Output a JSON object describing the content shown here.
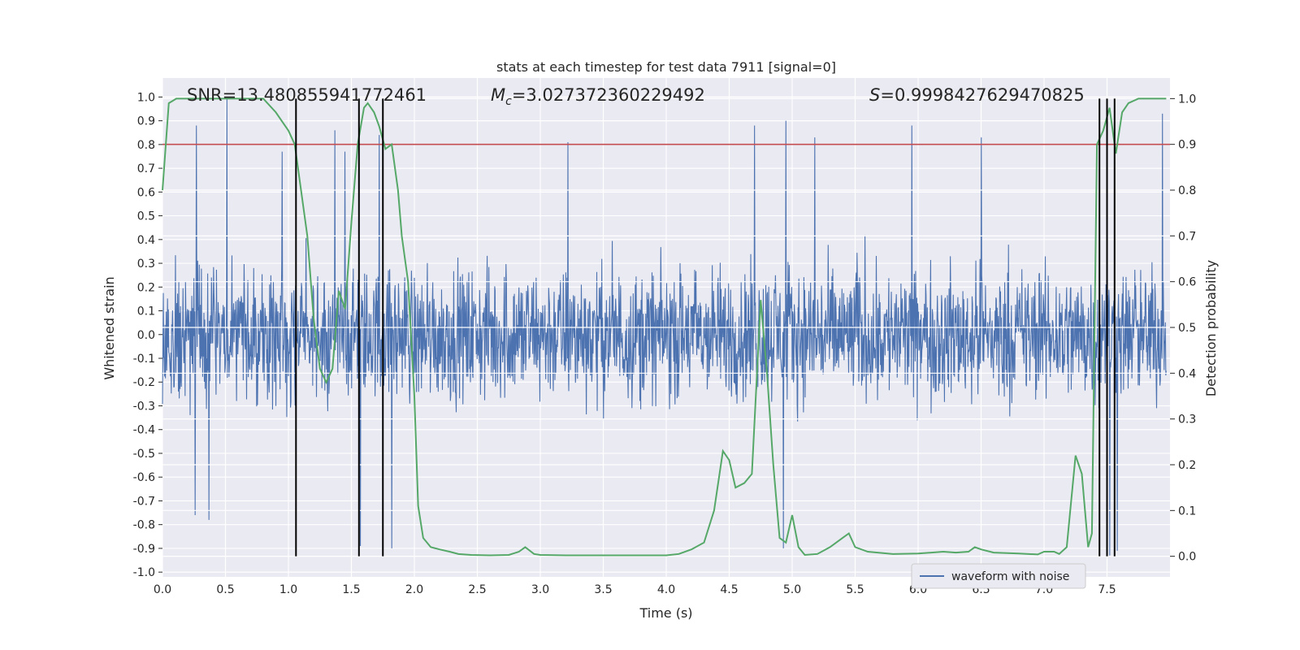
{
  "chart_data": {
    "type": "line",
    "title": "stats at each timestep for test data 7911 [signal=0]",
    "xlabel": "Time (s)",
    "ylabel": "Whitened strain",
    "y2label": "Detection probability",
    "xlim": [
      0.0,
      8.0
    ],
    "ylim": [
      -1.02,
      1.08
    ],
    "y2lim": [
      -0.045,
      1.045
    ],
    "xticks": [
      "0.0",
      "0.5",
      "1.0",
      "1.5",
      "2.0",
      "2.5",
      "3.0",
      "3.5",
      "4.0",
      "4.5",
      "5.0",
      "5.5",
      "6.0",
      "6.5",
      "7.0",
      "7.5"
    ],
    "yticks": [
      "1.0",
      "0.9",
      "0.8",
      "0.7",
      "0.6",
      "0.5",
      "0.4",
      "0.3",
      "0.2",
      "0.1",
      "0.0",
      "-0.1",
      "-0.2",
      "-0.3",
      "-0.4",
      "-0.5",
      "-0.6",
      "-0.7",
      "-0.8",
      "-0.9",
      "-1.0"
    ],
    "y2ticks": [
      "1.0",
      "0.9",
      "0.8",
      "0.7",
      "0.6",
      "0.5",
      "0.4",
      "0.3",
      "0.2",
      "0.1",
      "0.0"
    ],
    "grid": true,
    "legend": {
      "entries": [
        "waveform with noise"
      ],
      "placement": "lower-right"
    },
    "annotations": {
      "snr": "SNR=13.480855941772461",
      "mc_symbol": "M",
      "mc_sub": "c",
      "mc_value": "=3.027372360229492",
      "s_symbol": "S",
      "s_value": "=0.9998427629470825"
    },
    "threshold": 0.9,
    "threshold_color": "#c44e52",
    "detection_markers": [
      1.06,
      1.56,
      1.75,
      7.44,
      7.5,
      7.56
    ],
    "marker_color": "#000000",
    "series": [
      {
        "name": "waveform with noise",
        "color": "#4c72b0",
        "kind": "noise",
        "envelope_typical": 0.4,
        "peaks": [
          [
            0.27,
            0.88
          ],
          [
            0.51,
            0.99
          ],
          [
            0.26,
            -0.76
          ],
          [
            0.37,
            -0.78
          ],
          [
            0.95,
            0.77
          ],
          [
            1.37,
            0.86
          ],
          [
            1.45,
            0.77
          ],
          [
            1.57,
            -0.89
          ],
          [
            1.72,
            0.84
          ],
          [
            1.82,
            -0.9
          ],
          [
            3.22,
            0.81
          ],
          [
            4.7,
            0.88
          ],
          [
            4.95,
            0.9
          ],
          [
            5.18,
            0.83
          ],
          [
            5.95,
            0.88
          ],
          [
            6.5,
            0.83
          ],
          [
            7.58,
            -0.91
          ],
          [
            7.52,
            -0.93
          ],
          [
            7.94,
            0.93
          ],
          [
            4.93,
            -0.9
          ]
        ]
      },
      {
        "name": "detection probability",
        "color": "#55a868",
        "axis": "right",
        "x": [
          0.0,
          0.05,
          0.11,
          0.2,
          0.3,
          0.4,
          0.5,
          0.6,
          0.7,
          0.8,
          0.9,
          0.95,
          1.0,
          1.05,
          1.1,
          1.15,
          1.2,
          1.25,
          1.3,
          1.35,
          1.4,
          1.45,
          1.5,
          1.55,
          1.6,
          1.63,
          1.68,
          1.72,
          1.77,
          1.82,
          1.87,
          1.9,
          1.95,
          2.0,
          2.03,
          2.07,
          2.13,
          2.2,
          2.28,
          2.35,
          2.45,
          2.6,
          2.75,
          2.83,
          2.88,
          2.95,
          3.0,
          3.2,
          3.5,
          4.0,
          4.1,
          4.2,
          4.3,
          4.38,
          4.45,
          4.5,
          4.55,
          4.62,
          4.68,
          4.75,
          4.8,
          4.85,
          4.9,
          4.95,
          5.0,
          5.05,
          5.1,
          5.2,
          5.3,
          5.4,
          5.45,
          5.5,
          5.6,
          5.8,
          6.0,
          6.2,
          6.3,
          6.4,
          6.45,
          6.5,
          6.6,
          6.8,
          6.95,
          7.0,
          7.08,
          7.12,
          7.18,
          7.25,
          7.3,
          7.35,
          7.38,
          7.42,
          7.47,
          7.52,
          7.57,
          7.62,
          7.67,
          7.75,
          7.85,
          7.97
        ],
        "y": [
          0.8,
          0.99,
          1.0,
          1.0,
          1.0,
          1.0,
          1.0,
          1.0,
          1.0,
          1.0,
          0.97,
          0.95,
          0.93,
          0.9,
          0.8,
          0.7,
          0.52,
          0.41,
          0.38,
          0.41,
          0.58,
          0.54,
          0.73,
          0.9,
          0.98,
          0.99,
          0.97,
          0.94,
          0.89,
          0.9,
          0.8,
          0.7,
          0.6,
          0.35,
          0.11,
          0.04,
          0.02,
          0.015,
          0.01,
          0.005,
          0.003,
          0.002,
          0.003,
          0.01,
          0.02,
          0.005,
          0.003,
          0.002,
          0.002,
          0.002,
          0.005,
          0.015,
          0.03,
          0.1,
          0.23,
          0.21,
          0.15,
          0.16,
          0.18,
          0.56,
          0.4,
          0.2,
          0.04,
          0.03,
          0.09,
          0.02,
          0.003,
          0.005,
          0.02,
          0.04,
          0.05,
          0.02,
          0.01,
          0.005,
          0.006,
          0.01,
          0.008,
          0.01,
          0.02,
          0.015,
          0.008,
          0.006,
          0.004,
          0.01,
          0.01,
          0.005,
          0.02,
          0.22,
          0.18,
          0.02,
          0.05,
          0.9,
          0.93,
          0.98,
          0.88,
          0.97,
          0.99,
          1.0,
          1.0,
          1.0
        ]
      }
    ]
  }
}
